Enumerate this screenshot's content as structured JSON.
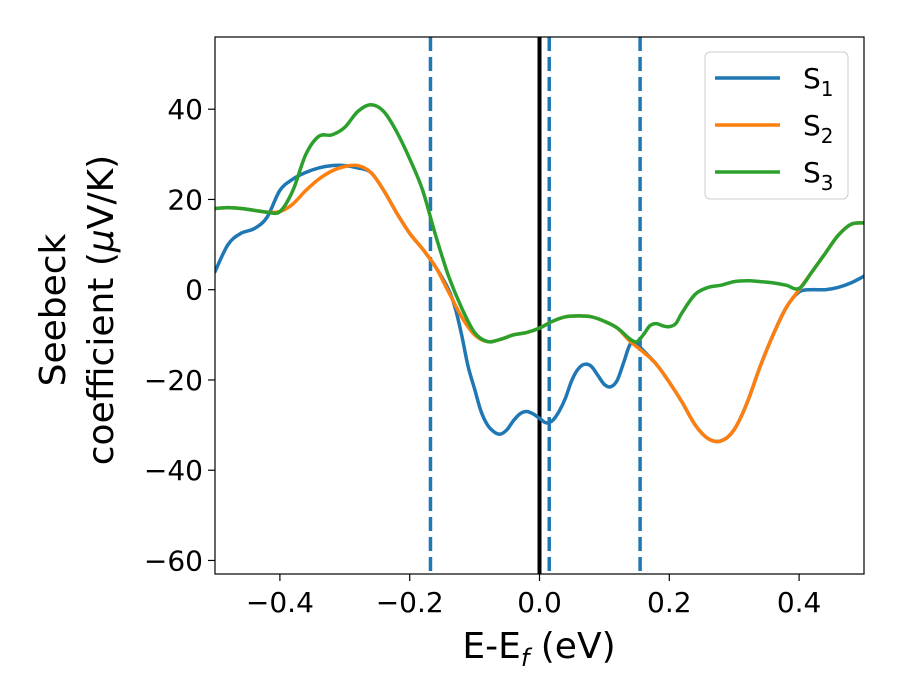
{
  "chart_data": {
    "type": "line",
    "title": "",
    "xlabel": {
      "main": "E-E",
      "sub": "f",
      "rest": " (eV)"
    },
    "ylabel": {
      "line1": "Seebeck",
      "line2a": "coefficient  (",
      "mu": "μ",
      "line2b": "V/K)"
    },
    "xlim": [
      -0.5,
      0.5
    ],
    "ylim": [
      -63,
      56
    ],
    "xticks": [
      -0.4,
      -0.2,
      0.0,
      0.2,
      0.4
    ],
    "xtick_labels": [
      "−0.4",
      "−0.2",
      "0.0",
      "0.2",
      "0.4"
    ],
    "yticks": [
      -60,
      -40,
      -20,
      0,
      20,
      40
    ],
    "ytick_labels": [
      "−60",
      "−40",
      "−20",
      "0",
      "20",
      "40"
    ],
    "grid": false,
    "legend_position": "top-right",
    "vertical_lines": [
      {
        "x": -0.168,
        "style": "dashed",
        "color": "#1f77b4"
      },
      {
        "x": 0.0,
        "style": "solid",
        "color": "#000000"
      },
      {
        "x": 0.015,
        "style": "dashed",
        "color": "#1f77b4"
      },
      {
        "x": 0.155,
        "style": "dashed",
        "color": "#1f77b4"
      }
    ],
    "series": [
      {
        "name": "S",
        "sub": "1",
        "color": "#1f77b4",
        "points": [
          [
            -0.5,
            4
          ],
          [
            -0.48,
            10
          ],
          [
            -0.46,
            12.5
          ],
          [
            -0.44,
            13.5
          ],
          [
            -0.42,
            16
          ],
          [
            -0.4,
            22
          ],
          [
            -0.38,
            24.5
          ],
          [
            -0.36,
            26
          ],
          [
            -0.34,
            27
          ],
          [
            -0.32,
            27.5
          ],
          [
            -0.3,
            27.5
          ],
          [
            -0.28,
            27
          ],
          [
            -0.26,
            26
          ],
          [
            -0.24,
            22
          ],
          [
            -0.22,
            17
          ],
          [
            -0.2,
            12.5
          ],
          [
            -0.18,
            9
          ],
          [
            -0.16,
            5
          ],
          [
            -0.14,
            0
          ],
          [
            -0.13,
            -4
          ],
          [
            -0.12,
            -10
          ],
          [
            -0.11,
            -17
          ],
          [
            -0.1,
            -22
          ],
          [
            -0.09,
            -27
          ],
          [
            -0.08,
            -30
          ],
          [
            -0.07,
            -31.5
          ],
          [
            -0.06,
            -32
          ],
          [
            -0.05,
            -31
          ],
          [
            -0.04,
            -29
          ],
          [
            -0.03,
            -27.5
          ],
          [
            -0.02,
            -27
          ],
          [
            -0.01,
            -27.5
          ],
          [
            0.0,
            -28.5
          ],
          [
            0.01,
            -29.5
          ],
          [
            0.02,
            -29
          ],
          [
            0.03,
            -27
          ],
          [
            0.04,
            -24
          ],
          [
            0.05,
            -20
          ],
          [
            0.06,
            -17.5
          ],
          [
            0.07,
            -16.5
          ],
          [
            0.08,
            -17
          ],
          [
            0.09,
            -19
          ],
          [
            0.1,
            -21
          ],
          [
            0.11,
            -21.5
          ],
          [
            0.12,
            -20
          ],
          [
            0.13,
            -16
          ],
          [
            0.14,
            -12
          ],
          [
            0.15,
            -12
          ],
          [
            0.16,
            -13.5
          ],
          [
            0.18,
            -16.5
          ],
          [
            0.2,
            -20.5
          ],
          [
            0.22,
            -25
          ],
          [
            0.24,
            -30
          ],
          [
            0.26,
            -33
          ],
          [
            0.28,
            -33.5
          ],
          [
            0.3,
            -31
          ],
          [
            0.32,
            -25
          ],
          [
            0.34,
            -17
          ],
          [
            0.36,
            -10
          ],
          [
            0.38,
            -4
          ],
          [
            0.4,
            -0.5
          ],
          [
            0.42,
            0
          ],
          [
            0.44,
            0
          ],
          [
            0.46,
            0.5
          ],
          [
            0.48,
            1.5
          ],
          [
            0.5,
            3
          ]
        ]
      },
      {
        "name": "S",
        "sub": "2",
        "color": "#ff7f0e",
        "points": [
          [
            -0.5,
            18
          ],
          [
            -0.48,
            18.2
          ],
          [
            -0.46,
            18
          ],
          [
            -0.44,
            17.6
          ],
          [
            -0.42,
            17.2
          ],
          [
            -0.4,
            17.3
          ],
          [
            -0.38,
            19
          ],
          [
            -0.36,
            22
          ],
          [
            -0.34,
            24.5
          ],
          [
            -0.32,
            26.3
          ],
          [
            -0.3,
            27.3
          ],
          [
            -0.28,
            27.5
          ],
          [
            -0.26,
            26
          ],
          [
            -0.24,
            22
          ],
          [
            -0.22,
            17
          ],
          [
            -0.2,
            12.5
          ],
          [
            -0.18,
            9
          ],
          [
            -0.16,
            5
          ],
          [
            -0.14,
            -0.5
          ],
          [
            -0.12,
            -6
          ],
          [
            -0.1,
            -10
          ],
          [
            -0.08,
            -11.5
          ],
          [
            -0.06,
            -11
          ],
          [
            -0.04,
            -10
          ],
          [
            -0.02,
            -9.5
          ],
          [
            0.0,
            -8.5
          ],
          [
            0.02,
            -7
          ],
          [
            0.04,
            -6
          ],
          [
            0.06,
            -5.8
          ],
          [
            0.08,
            -6
          ],
          [
            0.1,
            -7
          ],
          [
            0.12,
            -8.5
          ],
          [
            0.14,
            -11.5
          ],
          [
            0.16,
            -13.8
          ],
          [
            0.18,
            -16.5
          ],
          [
            0.2,
            -20.5
          ],
          [
            0.22,
            -25
          ],
          [
            0.24,
            -30
          ],
          [
            0.26,
            -33
          ],
          [
            0.28,
            -33.5
          ],
          [
            0.3,
            -31
          ],
          [
            0.32,
            -25
          ],
          [
            0.34,
            -17
          ],
          [
            0.36,
            -10
          ],
          [
            0.38,
            -4
          ],
          [
            0.4,
            0
          ],
          [
            0.42,
            4
          ],
          [
            0.44,
            8
          ],
          [
            0.46,
            12
          ],
          [
            0.48,
            14.5
          ],
          [
            0.5,
            14.8
          ]
        ]
      },
      {
        "name": "S",
        "sub": "3",
        "color": "#2ca02c",
        "points": [
          [
            -0.5,
            18
          ],
          [
            -0.48,
            18.2
          ],
          [
            -0.46,
            18
          ],
          [
            -0.44,
            17.6
          ],
          [
            -0.42,
            17.2
          ],
          [
            -0.4,
            17.3
          ],
          [
            -0.38,
            22
          ],
          [
            -0.36,
            30
          ],
          [
            -0.34,
            34
          ],
          [
            -0.32,
            34.3
          ],
          [
            -0.3,
            36
          ],
          [
            -0.28,
            39.5
          ],
          [
            -0.26,
            41
          ],
          [
            -0.24,
            39.5
          ],
          [
            -0.22,
            35
          ],
          [
            -0.2,
            29
          ],
          [
            -0.18,
            22
          ],
          [
            -0.16,
            12
          ],
          [
            -0.14,
            3
          ],
          [
            -0.12,
            -4
          ],
          [
            -0.1,
            -9.5
          ],
          [
            -0.08,
            -11.5
          ],
          [
            -0.06,
            -11
          ],
          [
            -0.04,
            -10
          ],
          [
            -0.02,
            -9.5
          ],
          [
            0.0,
            -8.5
          ],
          [
            0.02,
            -7
          ],
          [
            0.04,
            -6
          ],
          [
            0.06,
            -5.8
          ],
          [
            0.08,
            -6
          ],
          [
            0.1,
            -7
          ],
          [
            0.12,
            -8.5
          ],
          [
            0.14,
            -11
          ],
          [
            0.15,
            -11.5
          ],
          [
            0.16,
            -10
          ],
          [
            0.17,
            -8
          ],
          [
            0.18,
            -7.5
          ],
          [
            0.19,
            -8
          ],
          [
            0.2,
            -8.2
          ],
          [
            0.21,
            -7.5
          ],
          [
            0.22,
            -5
          ],
          [
            0.24,
            -1
          ],
          [
            0.26,
            0.5
          ],
          [
            0.28,
            1
          ],
          [
            0.3,
            1.8
          ],
          [
            0.32,
            2
          ],
          [
            0.34,
            1.8
          ],
          [
            0.36,
            1.5
          ],
          [
            0.38,
            1
          ],
          [
            0.4,
            0.3
          ],
          [
            0.42,
            4
          ],
          [
            0.44,
            8
          ],
          [
            0.46,
            12
          ],
          [
            0.48,
            14.5
          ],
          [
            0.5,
            14.8
          ]
        ]
      }
    ]
  }
}
